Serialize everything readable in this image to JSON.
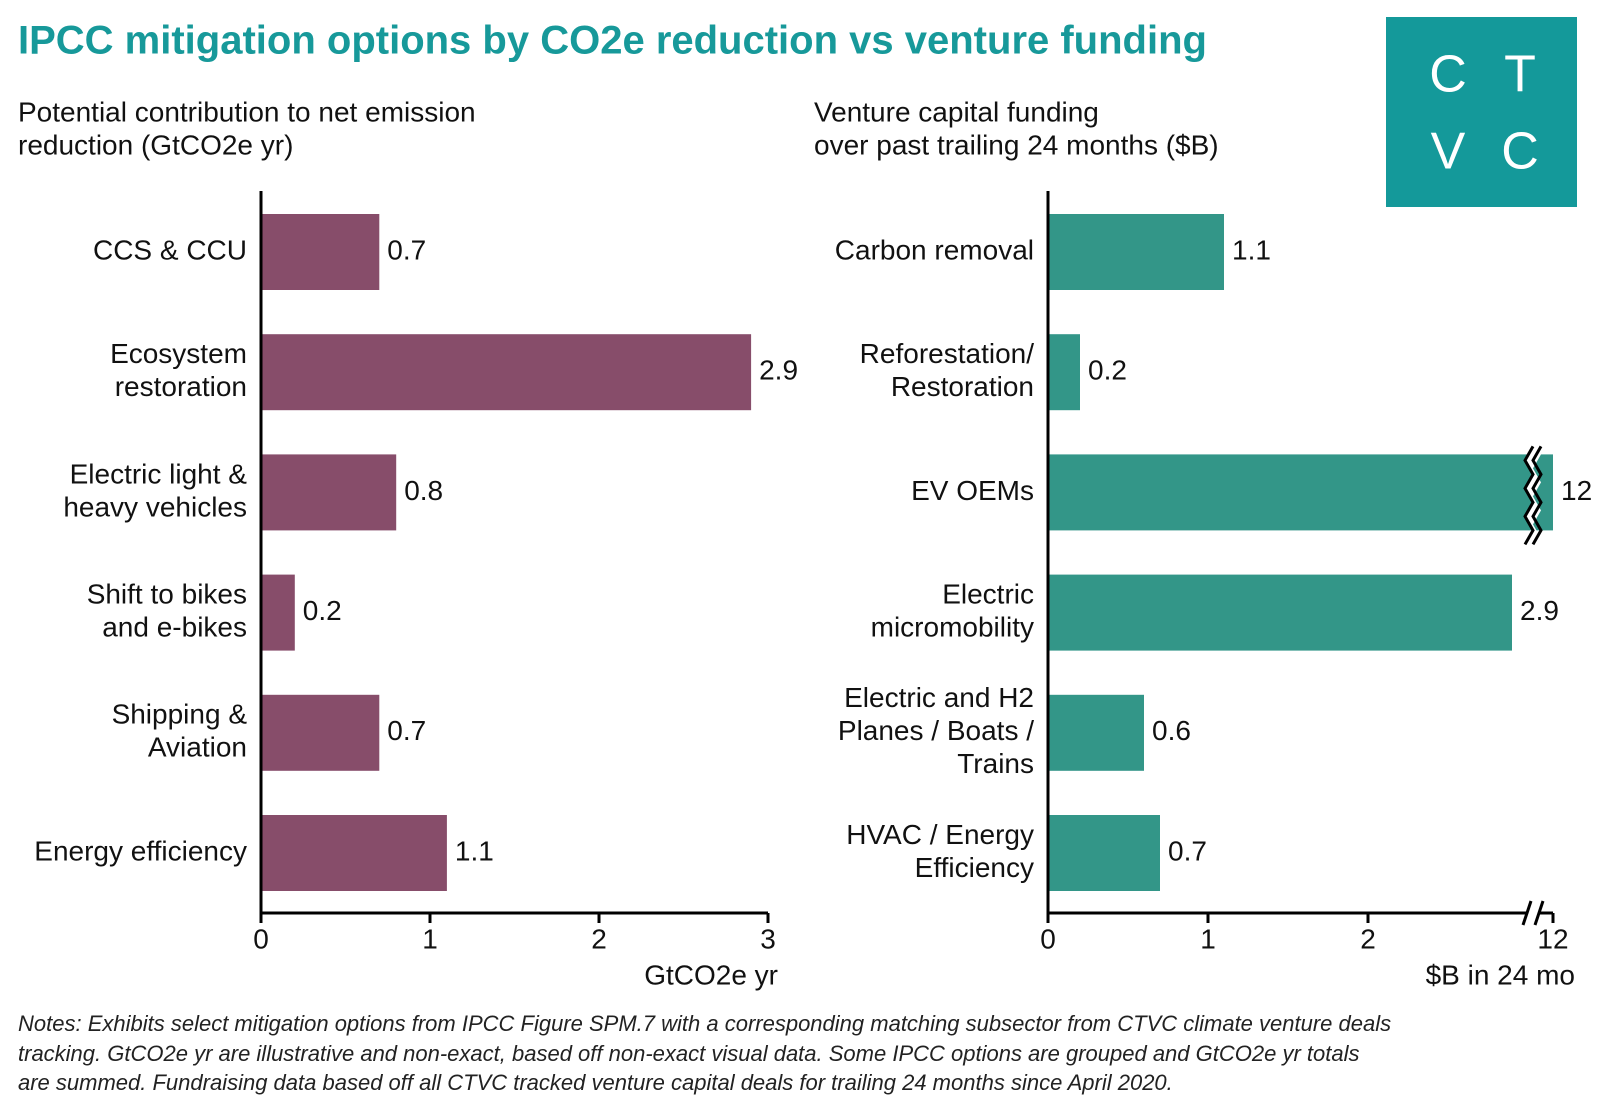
{
  "title": "IPCC mitigation options by CO2e reduction vs venture funding",
  "logo": [
    [
      "C",
      "T"
    ],
    [
      "V",
      "C"
    ]
  ],
  "notes": [
    "Notes: Exhibits select mitigation options from IPCC Figure SPM.7 with a corresponding matching subsector from CTVC climate venture deals",
    "tracking. GtCO2e yr are illustrative and non-exact, based off non-exact visual data. Some IPCC options are grouped and GtCO2e yr totals",
    "are summed. Fundraising data based off all CTVC tracked venture capital deals for trailing 24 months since April 2020."
  ],
  "chart_data": [
    {
      "type": "bar",
      "orientation": "horizontal",
      "subtitle": [
        "Potential contribution to net emission",
        "reduction (GtCO2e yr)"
      ],
      "xlabel": "GtCO2e yr",
      "categories": [
        [
          "CCS & CCU"
        ],
        [
          "Ecosystem",
          "restoration"
        ],
        [
          "Electric light &",
          "heavy vehicles"
        ],
        [
          "Shift to bikes",
          "and e-bikes"
        ],
        [
          "Shipping &",
          "Aviation"
        ],
        [
          "Energy efficiency"
        ]
      ],
      "values": [
        0.7,
        2.9,
        0.8,
        0.2,
        0.7,
        1.1
      ],
      "color": "#874d6a",
      "xlim": [
        0,
        3
      ],
      "xticks": [
        0,
        1,
        2,
        3
      ],
      "axis_break": false
    },
    {
      "type": "bar",
      "orientation": "horizontal",
      "subtitle": [
        "Venture capital funding",
        "over past trailing 24 months ($B)"
      ],
      "xlabel": "$B in 24 mo",
      "categories": [
        [
          "Carbon removal"
        ],
        [
          "Reforestation/",
          "Restoration"
        ],
        [
          "EV OEMs"
        ],
        [
          "Electric",
          "micromobility"
        ],
        [
          "Electric and H2",
          "Planes / Boats /",
          "Trains"
        ],
        [
          "HVAC / Energy",
          "Efficiency"
        ]
      ],
      "values": [
        1.1,
        0.2,
        12,
        2.9,
        0.6,
        0.7
      ],
      "color": "#339688",
      "xlim": [
        0,
        12
      ],
      "xticks": [
        0,
        1,
        2,
        12
      ],
      "axis_break": true
    }
  ]
}
